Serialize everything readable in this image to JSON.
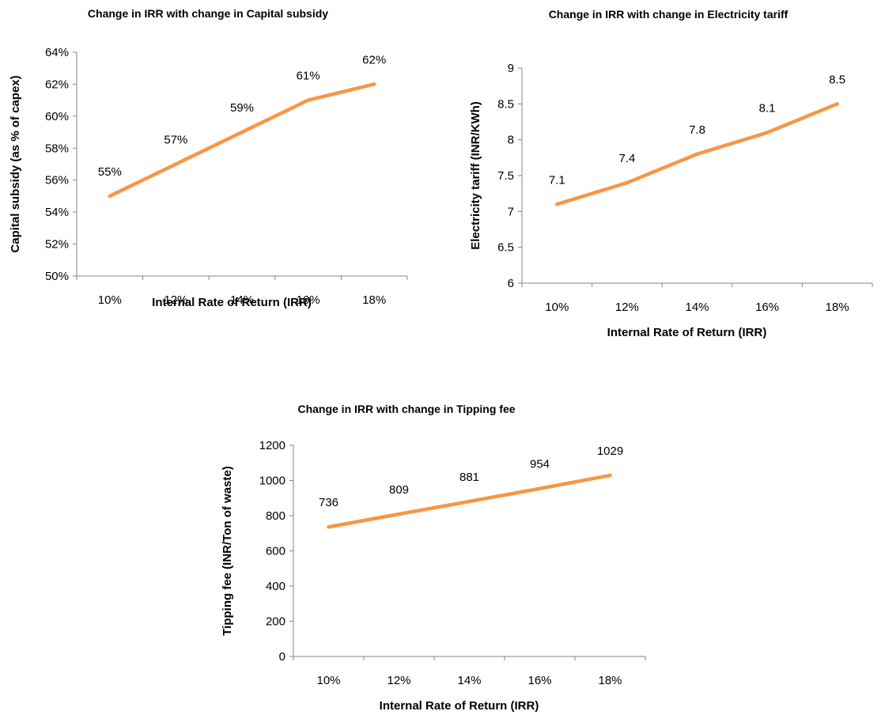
{
  "chart_data": [
    {
      "type": "line",
      "title": "Change in IRR with change in Capital subsidy",
      "xlabel": "Internal Rate of  Return (IRR)",
      "ylabel": "Capital subsidy (as % of capex)",
      "categories": [
        "10%",
        "12%",
        "14%",
        "16%",
        "18%"
      ],
      "values": [
        55,
        57,
        59,
        61,
        62
      ],
      "data_labels": [
        "55%",
        "57%",
        "59%",
        "61%",
        "62%"
      ],
      "ylim": [
        50,
        64
      ],
      "yticks": [
        50,
        52,
        54,
        56,
        58,
        60,
        62,
        64
      ],
      "ytick_labels": [
        "50%",
        "52%",
        "54%",
        "56%",
        "58%",
        "60%",
        "62%",
        "64%"
      ],
      "line_color": "#F79646",
      "grid": false,
      "legend": "none"
    },
    {
      "type": "line",
      "title": "Change in IRR with change in Electricity tariff",
      "xlabel": "Internal Rate of  Return (IRR)",
      "ylabel": "Electricity tariff (INR/KWh)",
      "categories": [
        "10%",
        "12%",
        "14%",
        "16%",
        "18%"
      ],
      "values": [
        7.1,
        7.4,
        7.8,
        8.1,
        8.5
      ],
      "data_labels": [
        "7.1",
        "7.4",
        "7.8",
        "8.1",
        "8.5"
      ],
      "ylim": [
        6,
        9
      ],
      "yticks": [
        6,
        6.5,
        7,
        7.5,
        8,
        8.5,
        9
      ],
      "ytick_labels": [
        "6",
        "6.5",
        "7",
        "7.5",
        "8",
        "8.5",
        "9"
      ],
      "line_color": "#F79646",
      "grid": false,
      "legend": "none"
    },
    {
      "type": "line",
      "title": "Change in IRR with  change in Tipping fee",
      "xlabel": "Internal Rate of  Return (IRR)",
      "ylabel": "Tipping fee (INR/Ton of waste)",
      "categories": [
        "10%",
        "12%",
        "14%",
        "16%",
        "18%"
      ],
      "values": [
        736,
        809,
        881,
        954,
        1029
      ],
      "data_labels": [
        "736",
        "809",
        "881",
        "954",
        "1029"
      ],
      "ylim": [
        0,
        1200
      ],
      "yticks": [
        0,
        200,
        400,
        600,
        800,
        1000,
        1200
      ],
      "ytick_labels": [
        "0",
        "200",
        "400",
        "600",
        "800",
        "1000",
        "1200"
      ],
      "line_color": "#F79646",
      "grid": false,
      "legend": "none"
    }
  ]
}
